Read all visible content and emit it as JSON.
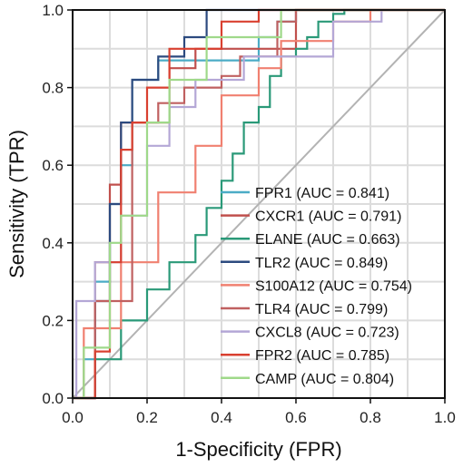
{
  "chart_data": {
    "type": "line",
    "title": "",
    "xlabel": "1-Specificity (FPR)",
    "ylabel": "Sensitivity (TPR)",
    "xlim": [
      0,
      1
    ],
    "ylim": [
      0,
      1
    ],
    "x_ticks": [
      "0.0",
      "0.2",
      "0.4",
      "0.6",
      "0.8",
      "1.0"
    ],
    "y_ticks": [
      "0.0",
      "0.2",
      "0.4",
      "0.6",
      "0.8",
      "1.0"
    ],
    "grid": true,
    "legend_position": "bottom-right",
    "diagonal_reference": {
      "x": [
        0,
        1
      ],
      "y": [
        0,
        1
      ],
      "color": "#b3b3b3"
    },
    "series": [
      {
        "name": "FPR1 (AUC = 0.841)",
        "color": "#4bacc6",
        "x": [
          0,
          0.03,
          0.03,
          0.06,
          0.06,
          0.1,
          0.1,
          0.13,
          0.13,
          0.16,
          0.16,
          0.23,
          0.23,
          0.5,
          0.5,
          0.55,
          0.55,
          0.6,
          0.6,
          1
        ],
        "y": [
          0,
          0,
          0.1,
          0.1,
          0.3,
          0.3,
          0.5,
          0.5,
          0.6,
          0.6,
          0.82,
          0.82,
          0.87,
          0.87,
          0.93,
          0.93,
          0.97,
          0.97,
          1,
          1
        ]
      },
      {
        "name": "CXCR1 (AUC = 0.791)",
        "color": "#c0504d",
        "x": [
          0,
          0.06,
          0.06,
          0.1,
          0.1,
          0.13,
          0.13,
          0.26,
          0.26,
          0.33,
          0.33,
          0.6,
          0.6,
          1
        ],
        "y": [
          0,
          0,
          0.35,
          0.35,
          0.55,
          0.55,
          0.71,
          0.71,
          0.85,
          0.85,
          0.9,
          0.9,
          1,
          1
        ]
      },
      {
        "name": "ELANE (AUC = 0.663)",
        "color": "#2a9978",
        "x": [
          0,
          0.06,
          0.06,
          0.13,
          0.13,
          0.2,
          0.2,
          0.26,
          0.26,
          0.33,
          0.33,
          0.36,
          0.36,
          0.4,
          0.4,
          0.43,
          0.43,
          0.46,
          0.46,
          0.5,
          0.5,
          0.53,
          0.53,
          0.56,
          0.56,
          0.6,
          0.6,
          0.63,
          0.63,
          0.66,
          0.66,
          0.7,
          0.7,
          0.73,
          0.73,
          1
        ],
        "y": [
          0,
          0,
          0.1,
          0.1,
          0.2,
          0.2,
          0.28,
          0.28,
          0.35,
          0.35,
          0.42,
          0.42,
          0.49,
          0.49,
          0.56,
          0.56,
          0.63,
          0.63,
          0.71,
          0.71,
          0.75,
          0.75,
          0.83,
          0.83,
          0.88,
          0.88,
          0.9,
          0.9,
          0.93,
          0.93,
          0.97,
          0.97,
          0.99,
          0.99,
          1,
          1
        ]
      },
      {
        "name": "TLR2 (AUC = 0.849)",
        "color": "#2c4a7f",
        "x": [
          0,
          0.06,
          0.06,
          0.1,
          0.1,
          0.13,
          0.13,
          0.16,
          0.16,
          0.23,
          0.23,
          0.3,
          0.3,
          0.36,
          0.36,
          0.6,
          0.6,
          1
        ],
        "y": [
          0,
          0,
          0.25,
          0.25,
          0.5,
          0.5,
          0.71,
          0.71,
          0.82,
          0.82,
          0.88,
          0.88,
          0.93,
          0.93,
          1,
          1,
          1,
          1
        ]
      },
      {
        "name": "S100A12 (AUC = 0.754)",
        "color": "#f08070",
        "x": [
          0,
          0.03,
          0.03,
          0.13,
          0.13,
          0.23,
          0.23,
          0.33,
          0.33,
          0.4,
          0.4,
          0.5,
          0.5,
          0.56,
          0.56,
          0.7,
          0.7,
          0.8,
          0.8,
          1
        ],
        "y": [
          0,
          0,
          0.18,
          0.18,
          0.35,
          0.35,
          0.53,
          0.53,
          0.65,
          0.65,
          0.78,
          0.78,
          0.85,
          0.85,
          0.92,
          0.92,
          0.97,
          0.97,
          1,
          1
        ]
      },
      {
        "name": "TLR4 (AUC = 0.799)",
        "color": "#c06060",
        "x": [
          0,
          0.06,
          0.06,
          0.16,
          0.16,
          0.23,
          0.23,
          0.3,
          0.3,
          0.4,
          0.4,
          0.45,
          0.45,
          0.55,
          0.55,
          0.6,
          0.6,
          1
        ],
        "y": [
          0,
          0,
          0.25,
          0.25,
          0.71,
          0.71,
          0.76,
          0.76,
          0.8,
          0.8,
          0.83,
          0.83,
          0.88,
          0.88,
          0.97,
          0.97,
          1,
          1
        ]
      },
      {
        "name": "CXCL8 (AUC = 0.723)",
        "color": "#b4a7d6",
        "x": [
          0,
          0.01,
          0.01,
          0.06,
          0.06,
          0.13,
          0.13,
          0.2,
          0.2,
          0.26,
          0.26,
          0.33,
          0.33,
          0.46,
          0.46,
          0.7,
          0.7,
          0.83,
          0.83,
          1
        ],
        "y": [
          0,
          0,
          0.25,
          0.25,
          0.35,
          0.35,
          0.47,
          0.47,
          0.65,
          0.65,
          0.75,
          0.75,
          0.82,
          0.82,
          0.88,
          0.88,
          0.97,
          0.97,
          1,
          1
        ]
      },
      {
        "name": "FPR2 (AUC = 0.785)",
        "color": "#d94030",
        "x": [
          0,
          0.06,
          0.06,
          0.1,
          0.1,
          0.13,
          0.13,
          0.16,
          0.16,
          0.2,
          0.2,
          0.26,
          0.26,
          0.4,
          0.4,
          0.5,
          0.5,
          1
        ],
        "y": [
          0,
          0,
          0.12,
          0.12,
          0.35,
          0.35,
          0.64,
          0.64,
          0.71,
          0.71,
          0.8,
          0.8,
          0.9,
          0.9,
          0.97,
          0.97,
          1,
          1
        ]
      },
      {
        "name": "CAMP (AUC = 0.804)",
        "color": "#9fd98a",
        "x": [
          0,
          0.03,
          0.03,
          0.1,
          0.1,
          0.13,
          0.13,
          0.2,
          0.2,
          0.26,
          0.26,
          0.36,
          0.36,
          0.56,
          0.56,
          1
        ],
        "y": [
          0,
          0,
          0.13,
          0.13,
          0.4,
          0.4,
          0.47,
          0.47,
          0.71,
          0.71,
          0.82,
          0.82,
          0.93,
          0.93,
          1,
          1
        ]
      }
    ]
  }
}
